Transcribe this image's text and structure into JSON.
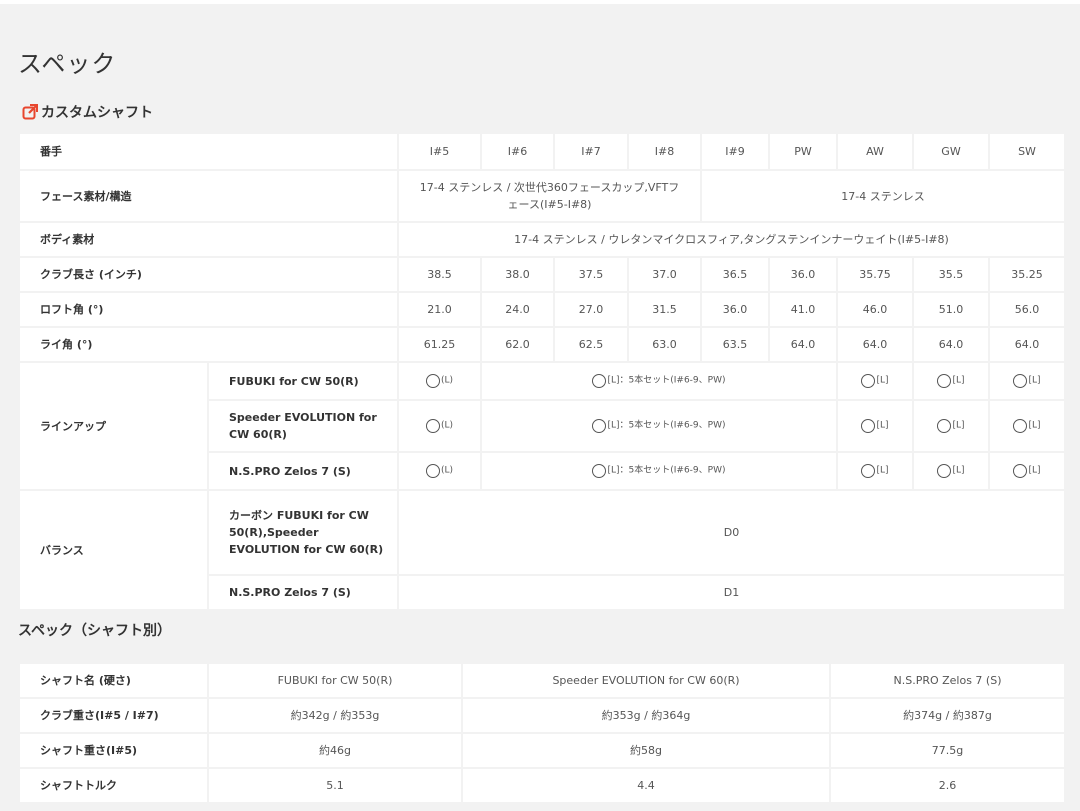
{
  "page": {
    "title": "スペック",
    "custom_link": "カスタムシャフト",
    "section2_title": "スペック（シャフト別）"
  },
  "spec": {
    "header_label": "番手",
    "clubs": [
      "I#5",
      "I#6",
      "I#7",
      "I#8",
      "I#9",
      "PW",
      "AW",
      "GW",
      "SW"
    ],
    "face_label": "フェース素材/構造",
    "face_a": "17-4 ステンレス / 次世代360フェースカップ,VFTフェース(I#5-I#8)",
    "face_b": "17-4 ステンレス",
    "body_label": "ボディ素材",
    "body_value": "17-4 ステンレス / ウレタンマイクロスフィア,タングステンインナーウェイト(I#5-I#8)",
    "length_label": "クラブ長さ (インチ)",
    "length": [
      "38.5",
      "38.0",
      "37.5",
      "37.0",
      "36.5",
      "36.0",
      "35.75",
      "35.5",
      "35.25"
    ],
    "loft_label": "ロフト角 (°)",
    "loft": [
      "21.0",
      "24.0",
      "27.0",
      "31.5",
      "36.0",
      "41.0",
      "46.0",
      "51.0",
      "56.0"
    ],
    "lie_label": "ライ角 (°)",
    "lie": [
      "61.25",
      "62.0",
      "62.5",
      "63.0",
      "63.5",
      "64.0",
      "64.0",
      "64.0",
      "64.0"
    ],
    "lineup_label": "ラインアップ",
    "lineup_shafts": [
      "FUBUKI for CW 50(R)",
      "Speeder EVOLUTION for CW 60(R)",
      "N.S.PRO Zelos 7 (S)"
    ],
    "lineup_single": "(L)",
    "lineup_single_bracket": "[L]",
    "lineup_set": "[L]：5本セット(I#6-9、PW)",
    "balance_label": "バランス",
    "balance_shaft_a": "カーボン FUBUKI for CW 50(R),Speeder EVOLUTION for CW 60(R)",
    "balance_a": "D0",
    "balance_shaft_b": "N.S.PRO Zelos 7 (S)",
    "balance_b": "D1"
  },
  "shaft_spec": {
    "header_label": "シャフト名 (硬さ)",
    "shafts": [
      "FUBUKI for CW 50(R)",
      "Speeder EVOLUTION for CW 60(R)",
      "N.S.PRO Zelos 7 (S)"
    ],
    "rows": [
      {
        "label": "クラブ重さ(I#5 / I#7)",
        "values": [
          "約342g / 約353g",
          "約353g / 約364g",
          "約374g / 約387g"
        ]
      },
      {
        "label": "シャフト重さ(I#5)",
        "values": [
          "約46g",
          "約58g",
          "77.5g"
        ]
      },
      {
        "label": "シャフトトルク",
        "values": [
          "5.1",
          "4.4",
          "2.6"
        ]
      }
    ]
  },
  "colors": {
    "accent": "#e8462e",
    "background": "#f2f2f2",
    "cell": "#ffffff"
  }
}
